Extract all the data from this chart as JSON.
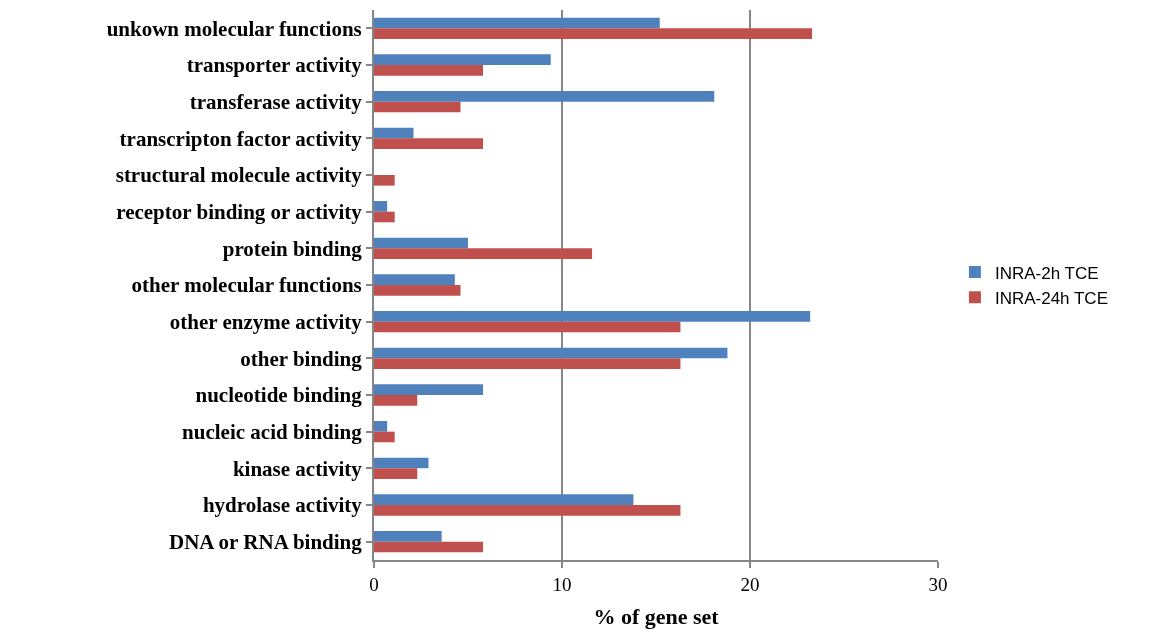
{
  "chart_data": {
    "type": "bar",
    "orientation": "horizontal",
    "xlabel": "% of gene set",
    "categories": [
      "unkown molecular functions",
      "transporter activity",
      "transferase activity",
      "transcripton factor activity",
      "structural molecule activity",
      "receptor binding or activity",
      "protein binding",
      "other molecular functions",
      "other enzyme activity",
      "other binding",
      "nucleotide binding",
      "nucleic acid binding",
      "kinase activity",
      "hydrolase activity",
      "DNA or RNA binding"
    ],
    "series": [
      {
        "name": "INRA-2h TCE",
        "color": "#4f81bd",
        "values": [
          15.2,
          9.4,
          18.1,
          2.1,
          0,
          0.7,
          5.0,
          4.3,
          23.2,
          18.8,
          5.8,
          0.7,
          2.9,
          13.8,
          3.6
        ]
      },
      {
        "name": "INRA-24h TCE",
        "color": "#c0504d",
        "values": [
          23.3,
          5.8,
          4.6,
          5.8,
          1.1,
          1.1,
          11.6,
          4.6,
          16.3,
          16.3,
          2.3,
          1.1,
          2.3,
          16.3,
          5.8
        ]
      }
    ],
    "xlim": [
      0,
      30
    ],
    "xticks": [
      0,
      10,
      20,
      30
    ],
    "grid": "x",
    "legend": "right"
  }
}
